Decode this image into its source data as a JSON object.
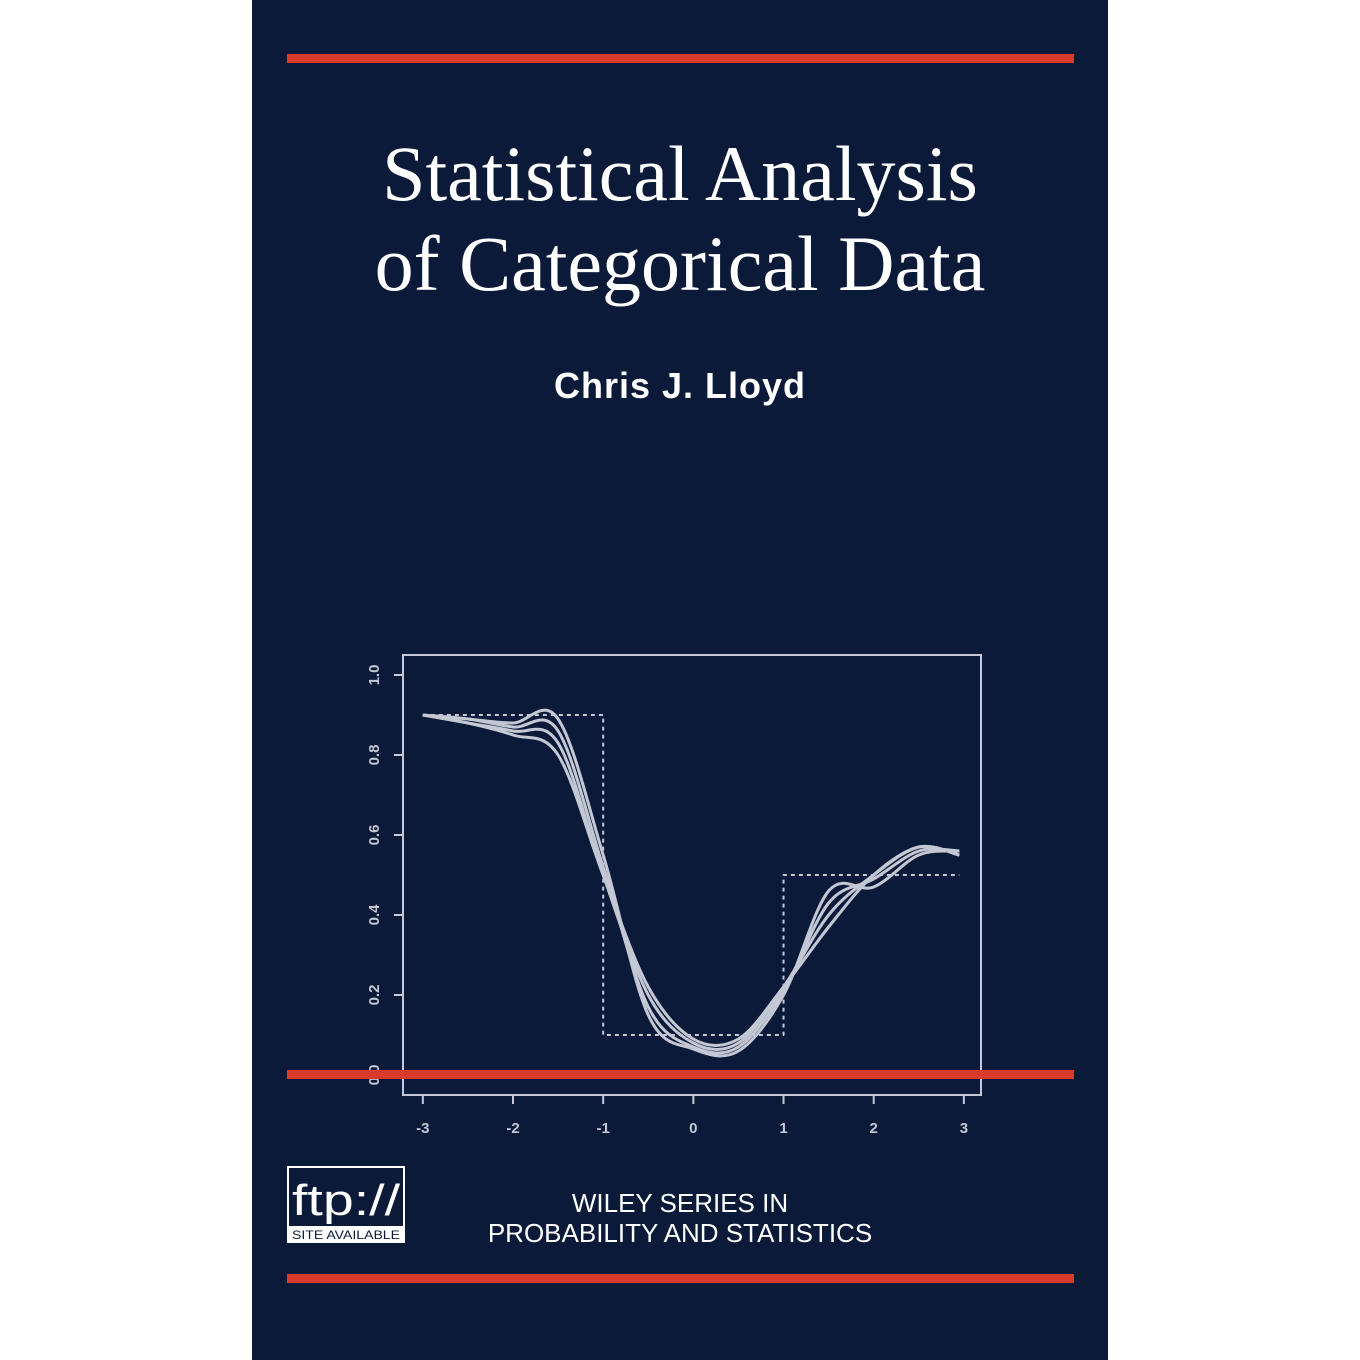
{
  "cover": {
    "title_lines": [
      "Statistical Analysis",
      "of Categorical Data"
    ],
    "author": "Chris J. Lloyd",
    "series_lines": [
      "WILEY SERIES IN",
      "PROBABILITY AND STATISTICS"
    ],
    "logo": {
      "main": "ftp://",
      "sub": "SITE AVAILABLE"
    }
  },
  "chart_data": {
    "type": "line",
    "xlim": [
      -3.22,
      3.19
    ],
    "ylim": [
      -0.05,
      1.05
    ],
    "xticks": [
      -3,
      -2,
      -1,
      0,
      1,
      2,
      3
    ],
    "yticks": [
      {
        "value": 0,
        "label": "0.0"
      },
      0.2,
      0.4,
      0.6,
      0.8,
      {
        "value": 1,
        "label": "1.0"
      }
    ],
    "series": [
      {
        "style": "dashed",
        "color": "#c4c8d4",
        "x": [
          -3,
          -1,
          -1,
          1,
          1,
          2.95
        ],
        "values": [
          0.9,
          0.9,
          0.1,
          0.1,
          0.5,
          0.5
        ]
      },
      {
        "style": "solid",
        "color": "#c4c8d4",
        "x": [
          -3,
          -2.5,
          -2,
          -1.5,
          -1,
          -0.5,
          0,
          0.5,
          1,
          1.5,
          2,
          2.5,
          2.95
        ],
        "values": [
          0.9,
          0.89,
          0.88,
          0.89,
          0.55,
          0.15,
          0.065,
          0.06,
          0.2,
          0.46,
          0.47,
          0.55,
          0.56
        ]
      },
      {
        "style": "solid",
        "color": "#c4c8d4",
        "x": [
          -3,
          -2.5,
          -2,
          -1.5,
          -1,
          -0.5,
          0,
          0.5,
          1,
          1.5,
          2,
          2.5,
          2.95
        ],
        "values": [
          0.9,
          0.89,
          0.87,
          0.86,
          0.52,
          0.17,
          0.07,
          0.07,
          0.21,
          0.43,
          0.49,
          0.56,
          0.56
        ]
      },
      {
        "style": "solid",
        "color": "#c4c8d4",
        "x": [
          -3,
          -2.5,
          -2,
          -1.5,
          -1,
          -0.5,
          0,
          0.5,
          1,
          1.5,
          2,
          2.5,
          2.95
        ],
        "values": [
          0.9,
          0.88,
          0.86,
          0.83,
          0.5,
          0.2,
          0.08,
          0.08,
          0.22,
          0.4,
          0.5,
          0.57,
          0.55
        ]
      },
      {
        "style": "solid",
        "color": "#c4c8d4",
        "x": [
          -3,
          -2.5,
          -2,
          -1.5,
          -1,
          -0.5,
          0,
          0.5,
          1,
          1.5,
          2,
          2.5,
          2.95
        ],
        "values": [
          0.9,
          0.88,
          0.85,
          0.8,
          0.5,
          0.22,
          0.09,
          0.09,
          0.22,
          0.37,
          0.5,
          0.57,
          0.55
        ]
      }
    ]
  }
}
